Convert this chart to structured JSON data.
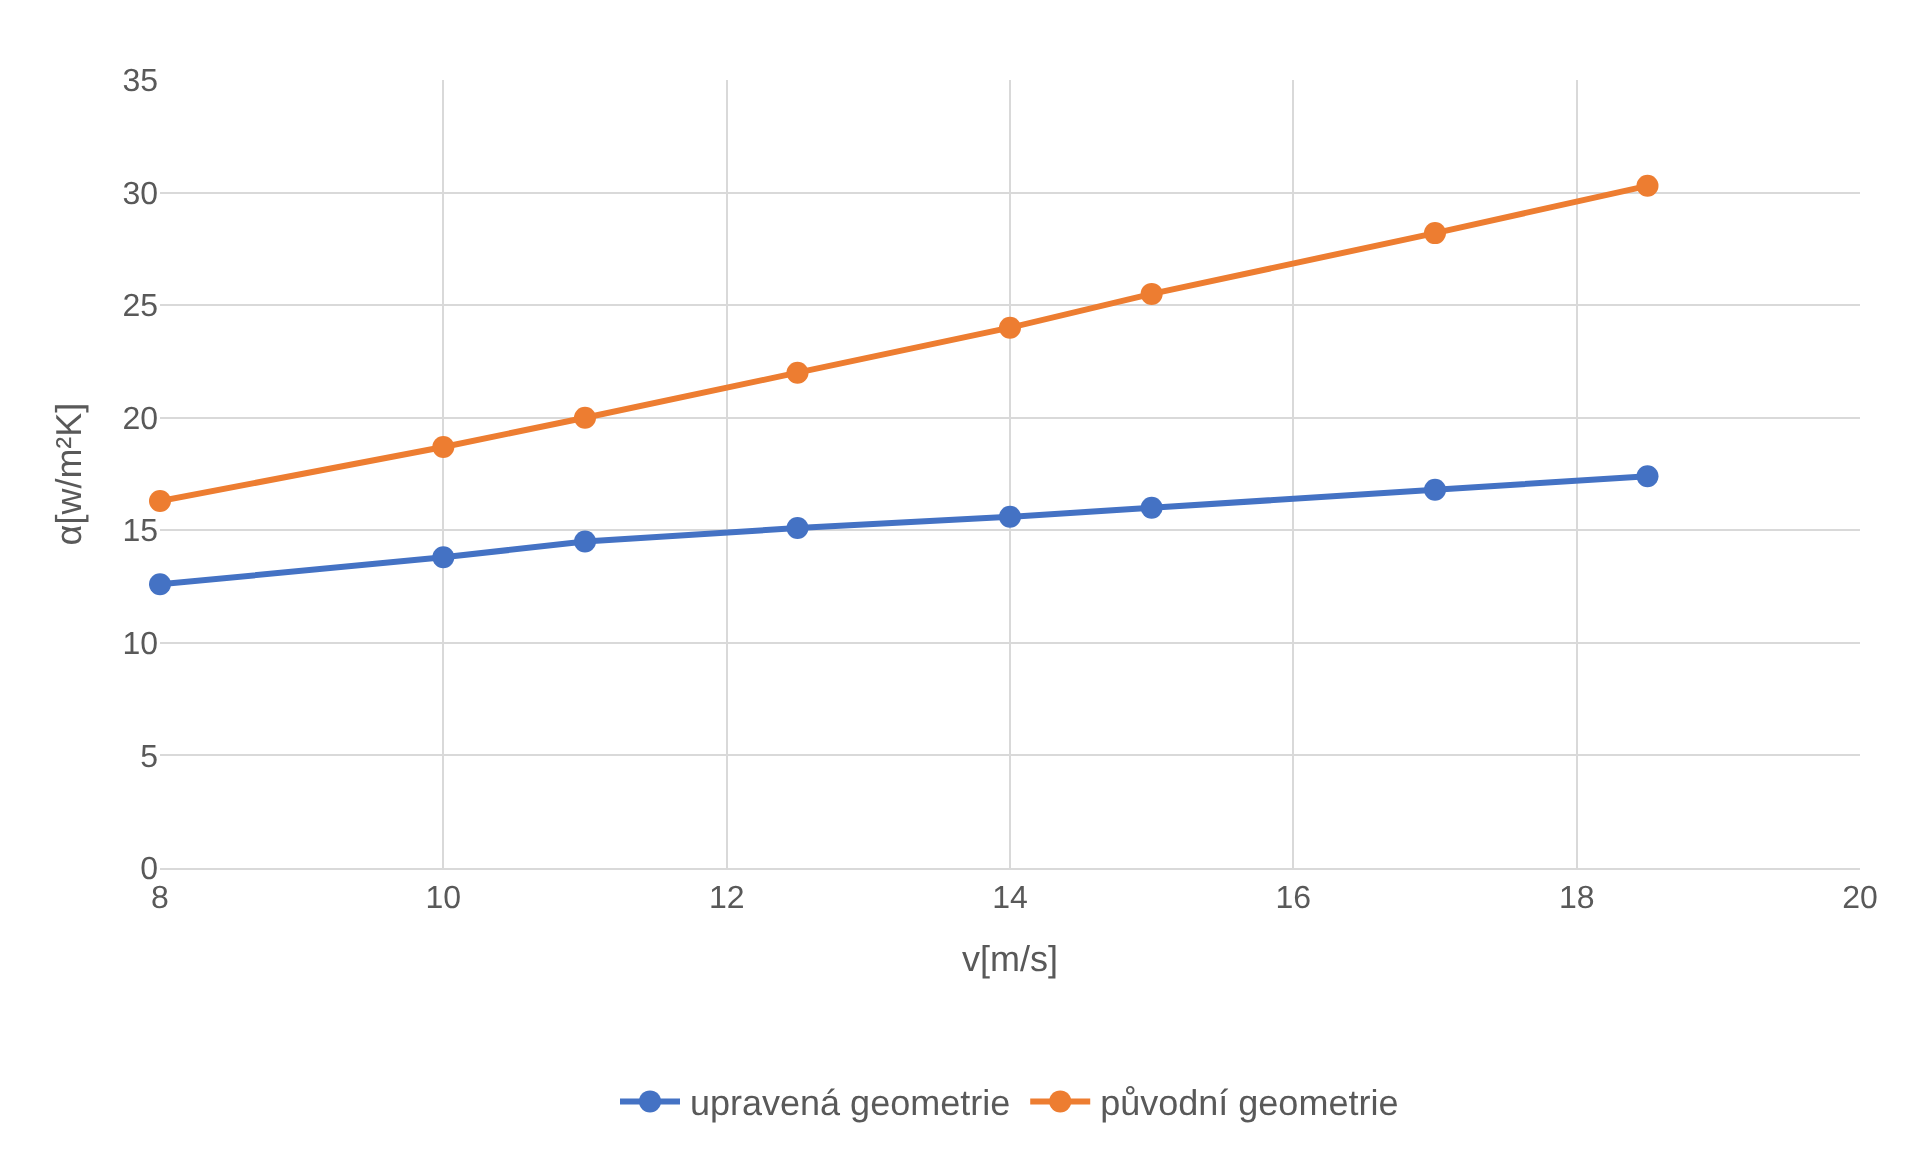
{
  "chart_data": {
    "type": "line",
    "xlabel": "v[m/s]",
    "ylabel": "α[w/m²K]",
    "x": [
      8,
      10,
      11,
      12.5,
      14,
      15,
      17,
      18.5
    ],
    "series": [
      {
        "name": "upravená geometrie",
        "color": "#4472c4",
        "values": [
          12.6,
          13.8,
          14.5,
          15.1,
          15.6,
          16.0,
          16.8,
          17.4
        ]
      },
      {
        "name": "původní geometrie",
        "color": "#ed7d31",
        "values": [
          16.3,
          18.7,
          20.0,
          22.0,
          24.0,
          25.5,
          28.2,
          30.3
        ]
      }
    ],
    "xlim": [
      8,
      20
    ],
    "xticks": [
      8,
      10,
      12,
      14,
      16,
      18,
      20
    ],
    "ylim": [
      0,
      35
    ],
    "yticks": [
      0,
      5,
      10,
      15,
      20,
      25,
      30,
      35
    ],
    "grid": true,
    "legend": "bottom",
    "marker": "circle",
    "line_style": "solid"
  }
}
